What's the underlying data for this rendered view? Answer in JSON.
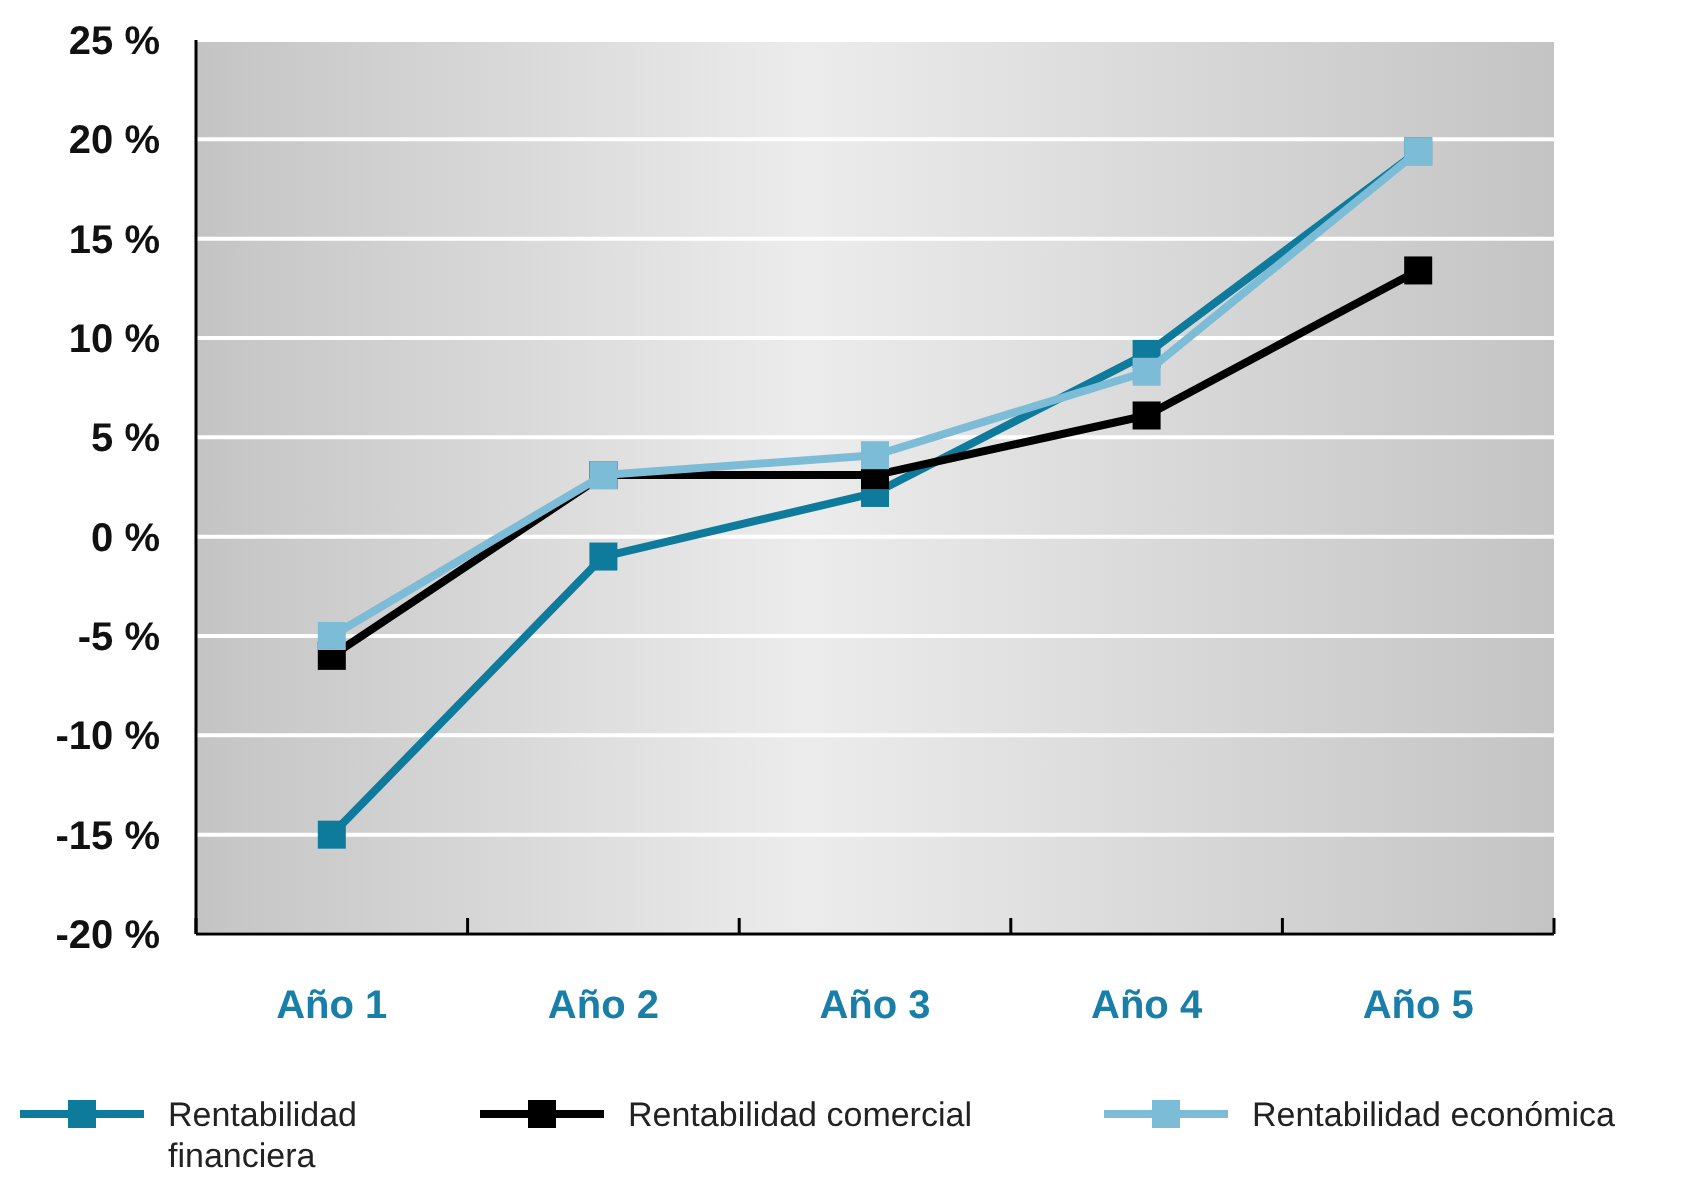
{
  "chart_data": {
    "type": "line",
    "categories": [
      "Año 1",
      "Año 2",
      "Año 3",
      "Año 4",
      "Año 5"
    ],
    "ylim": [
      -20,
      25
    ],
    "yticks": [
      {
        "value": -20,
        "label": "-20 %"
      },
      {
        "value": -15,
        "label": "-15 %"
      },
      {
        "value": -10,
        "label": "-10 %"
      },
      {
        "value": -5,
        "label": "-5 %"
      },
      {
        "value": 0,
        "label": "0 %"
      },
      {
        "value": 5,
        "label": "5 %"
      },
      {
        "value": 10,
        "label": "10 %"
      },
      {
        "value": 15,
        "label": "15 %"
      },
      {
        "value": 20,
        "label": "20 %"
      },
      {
        "value": 25,
        "label": "25 %"
      }
    ],
    "grid": "y",
    "legend": "bottom",
    "marker": "square",
    "line_style": "solid",
    "series": [
      {
        "name": "Rentabilidad financiera",
        "color": "#0e7a9c",
        "values": [
          -15,
          -1,
          2.2,
          9.2,
          19.4
        ]
      },
      {
        "name": "Rentabilidad comercial",
        "color": "#000000",
        "values": [
          -6,
          3.1,
          3.1,
          6.1,
          13.4
        ]
      },
      {
        "name": "Rentabilidad económica",
        "color": "#7dbcd6",
        "values": [
          -5,
          3.1,
          4.1,
          8.3,
          19.4
        ]
      }
    ]
  }
}
